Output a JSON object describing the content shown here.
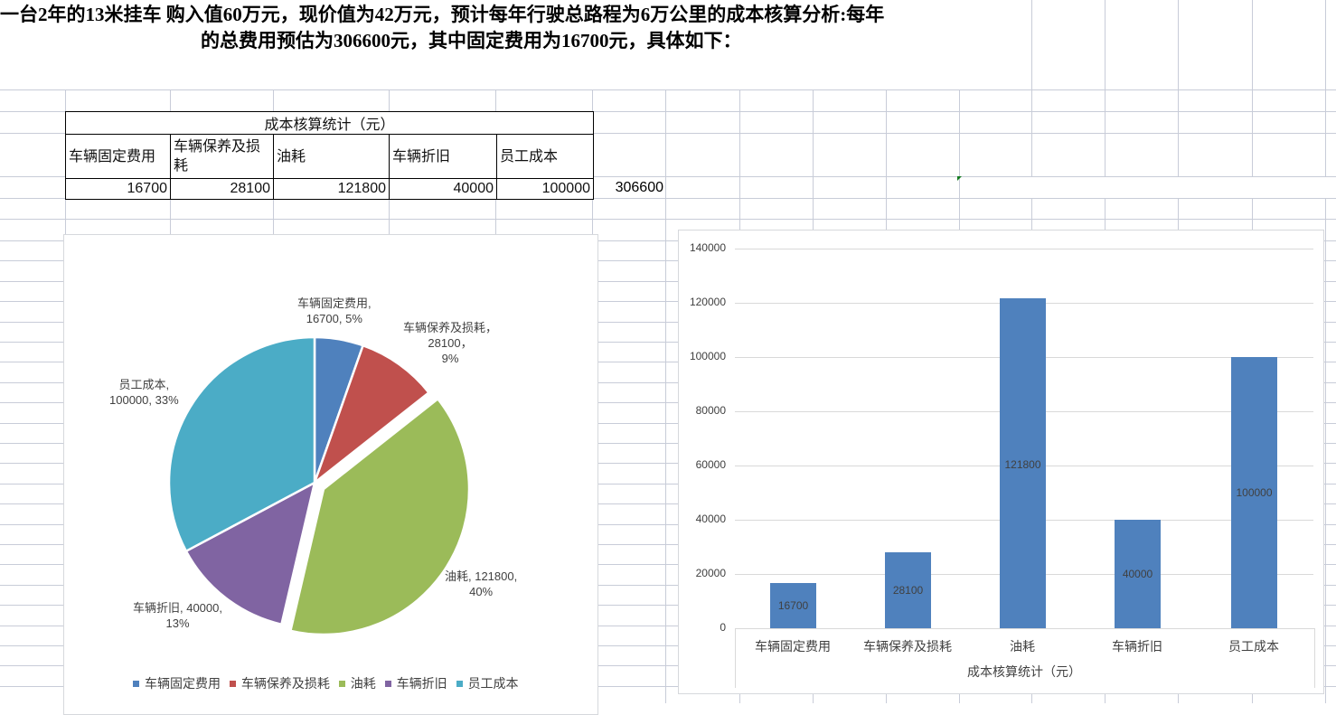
{
  "title": {
    "line1": "一台2年的13米挂车  购入值60万元，现价值为42万元，预计每年行驶总路程为6万公里的成本核算分析:每年",
    "line2": "的总费用预估为306600元，其中固定费用为16700元，具体如下："
  },
  "table": {
    "header": "成本核算统计（元）",
    "columns": [
      "车辆固定费用",
      "车辆保养及损耗",
      "油耗",
      "车辆折旧",
      "员工成本"
    ],
    "values": [
      "16700",
      "28100",
      "121800",
      "40000",
      "100000"
    ],
    "total": "306600"
  },
  "colors": {
    "blue": "#4f81bd",
    "red": "#c0504d",
    "green": "#9bbb59",
    "purple": "#8064a2",
    "teal": "#4bacc6",
    "gridline": "#c8ccd8"
  },
  "pie": {
    "labels": [
      {
        "l1": "车辆固定费用,",
        "l2": "16700, 5%"
      },
      {
        "l1": "车辆保养及损耗，",
        "l2": "28100，",
        "l3": "9%"
      },
      {
        "l1": "油耗, 121800,",
        "l2": "40%"
      },
      {
        "l1": "车辆折旧, 40000,",
        "l2": "13%"
      },
      {
        "l1": "员工成本,",
        "l2": "100000, 33%"
      }
    ],
    "legend": [
      "车辆固定费用",
      "车辆保养及损耗",
      "油耗",
      "车辆折旧",
      "员工成本"
    ]
  },
  "bar": {
    "yticks": [
      "140000",
      "120000",
      "100000",
      "80000",
      "60000",
      "40000",
      "20000",
      "0"
    ],
    "categories": [
      "车辆固定费用",
      "车辆保养及损耗",
      "油耗",
      "车辆折旧",
      "员工成本"
    ],
    "values": [
      "16700",
      "28100",
      "121800",
      "40000",
      "100000"
    ],
    "xtitle": "成本核算统计（元）"
  },
  "chart_data": [
    {
      "type": "pie",
      "title": "",
      "categories": [
        "车辆固定费用",
        "车辆保养及损耗",
        "油耗",
        "车辆折旧",
        "员工成本"
      ],
      "values": [
        16700,
        28100,
        121800,
        40000,
        100000
      ],
      "percentages": [
        5,
        9,
        40,
        13,
        33
      ],
      "exploded": [
        "油耗"
      ],
      "legend_position": "bottom",
      "colors": [
        "#4f81bd",
        "#c0504d",
        "#9bbb59",
        "#8064a2",
        "#4bacc6"
      ]
    },
    {
      "type": "bar",
      "title": "",
      "categories": [
        "车辆固定费用",
        "车辆保养及损耗",
        "油耗",
        "车辆折旧",
        "员工成本"
      ],
      "values": [
        16700,
        28100,
        121800,
        40000,
        100000
      ],
      "xlabel": "成本核算统计（元）",
      "ylabel": "",
      "ylim": [
        0,
        140000
      ],
      "yticks": [
        0,
        20000,
        40000,
        60000,
        80000,
        100000,
        120000,
        140000
      ],
      "grid": true,
      "data_labels": true,
      "color": "#4f81bd"
    }
  ]
}
